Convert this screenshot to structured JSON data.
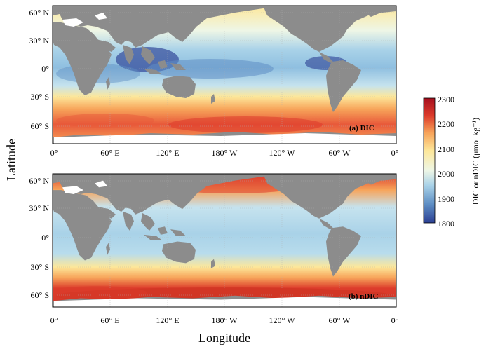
{
  "panels": [
    {
      "id": "a",
      "label": "(a) DIC",
      "lat_ticks": [
        "60° N",
        "30° N",
        "0°",
        "30° S",
        "60° S"
      ],
      "lon_ticks": [
        "0°",
        "60° E",
        "120° E",
        "180° W",
        "120° W",
        "60° W",
        "0°"
      ]
    },
    {
      "id": "b",
      "label": "(b) nDIC",
      "lat_ticks": [
        "60° N",
        "30° N",
        "0°",
        "30° S",
        "60° S"
      ],
      "lon_ticks": [
        "0°",
        "60° E",
        "120° E",
        "180° W",
        "120° W",
        "60° W",
        "0°"
      ]
    }
  ],
  "axes": {
    "ylabel": "Latitude",
    "xlabel": "Longitude"
  },
  "colorbar": {
    "label": "DIC or nDIC (μmol kg⁻¹)",
    "ticks": [
      "2300",
      "2200",
      "2100",
      "2000",
      "1900",
      "1800"
    ],
    "min": 1800,
    "max": 2300,
    "colors": [
      "#2b3f93",
      "#5e8ec4",
      "#a9d2e8",
      "#eef6e6",
      "#fde79a",
      "#f7a45a",
      "#dc3b2b",
      "#a50f1e"
    ]
  },
  "map_colors": {
    "land": "#8c8c8c",
    "ice": "#ffffff"
  }
}
